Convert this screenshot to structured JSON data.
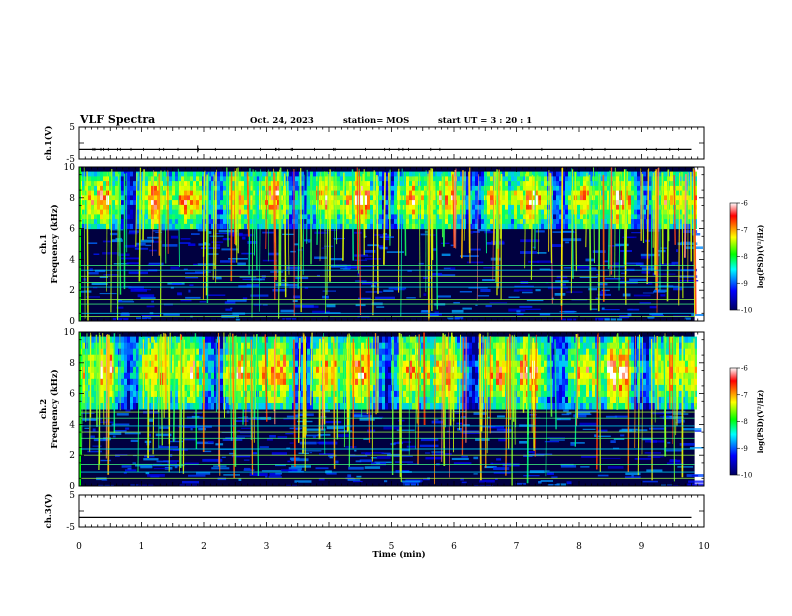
{
  "header": {
    "title": "VLF Spectra",
    "date": "Oct. 24, 2023",
    "station": "station= MOS",
    "start": "start  UT =   3 : 20 : 1"
  },
  "colorbar": {
    "label": "log(PSD)(V²/Hz)",
    "ticks": [
      "-6",
      "-7",
      "-8",
      "-9",
      "-10"
    ],
    "stops": [
      "#ffffff",
      "#ff0000",
      "#ffff00",
      "#00ff00",
      "#00ffff",
      "#0000ff",
      "#000060"
    ]
  },
  "chart_data": [
    {
      "type": "line",
      "ylabel": "ch.1(V)",
      "ylim": [
        -5,
        5
      ],
      "yticks": [
        "5",
        "",
        "-5"
      ],
      "baseline": -2,
      "grid": false
    },
    {
      "type": "heatmap",
      "ylabel": "ch.1\nFrequency (kHz)",
      "ylim": [
        0,
        10
      ],
      "yticks": [
        "10",
        "8",
        "6",
        "4",
        "2",
        "0"
      ],
      "band_kHz": [
        6,
        10
      ],
      "data_end_min": 9.85,
      "vmin": -10,
      "vmax": -6
    },
    {
      "type": "heatmap",
      "ylabel": "ch.2\nFrequency (kHz)",
      "ylim": [
        0,
        10
      ],
      "yticks": [
        "10",
        "8",
        "6",
        "4",
        "2",
        "0"
      ],
      "band_kHz": [
        5,
        10
      ],
      "data_end_min": 9.85,
      "vmin": -10,
      "vmax": -6
    },
    {
      "type": "line",
      "ylabel": "ch.3(V)",
      "ylim": [
        -5,
        5
      ],
      "yticks": [
        "5",
        "",
        "-5"
      ],
      "baseline": -2,
      "grid": false
    }
  ],
  "x_axis": {
    "xlabel": "Time  (min)",
    "xlim": [
      0,
      10
    ],
    "ticks": [
      "0",
      "1",
      "2",
      "3",
      "4",
      "5",
      "6",
      "7",
      "8",
      "9",
      "10"
    ]
  }
}
